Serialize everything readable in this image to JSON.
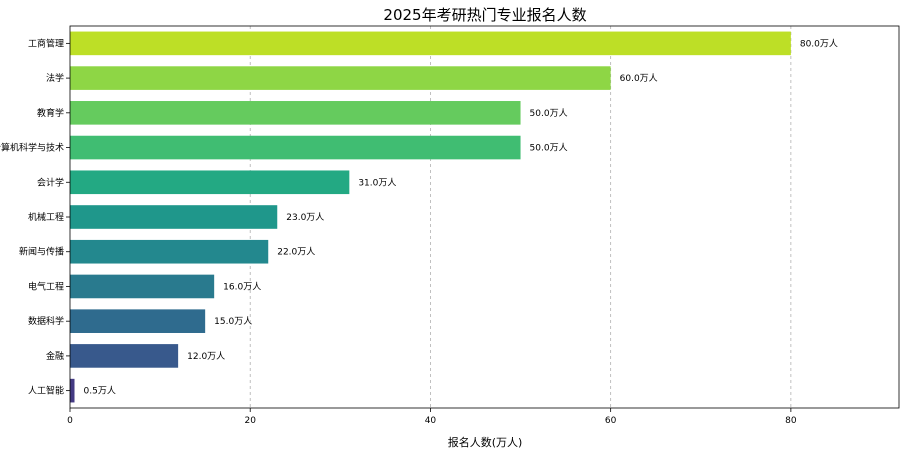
{
  "chart_data": {
    "type": "bar",
    "orientation": "horizontal",
    "title": "2025年考研热门专业报名人数",
    "xlabel": "报名人数(万人)",
    "ylabel": "",
    "xlim": [
      0,
      92
    ],
    "xticks": [
      0,
      20,
      40,
      60,
      80
    ],
    "grid": "x-dashed",
    "value_unit": "万人",
    "categories": [
      "工商管理",
      "法学",
      "教育学",
      "计算机科学与技术",
      "会计学",
      "机械工程",
      "新闻与传播",
      "电气工程",
      "数据科学",
      "金融",
      "人工智能"
    ],
    "values": [
      80.0,
      60.0,
      50.0,
      50.0,
      31.0,
      23.0,
      22.0,
      16.0,
      15.0,
      12.0,
      0.5
    ],
    "data_labels": [
      "80.0万人",
      "60.0万人",
      "50.0万人",
      "50.0万人",
      "31.0万人",
      "23.0万人",
      "22.0万人",
      "16.0万人",
      "15.0万人",
      "12.0万人",
      "0.5万人"
    ],
    "colors": [
      "#bddf26",
      "#8ed645",
      "#65cb5e",
      "#40bd72",
      "#23a983",
      "#1f978b",
      "#23888e",
      "#297a8e",
      "#2f6b8e",
      "#38598c",
      "#443a83"
    ]
  }
}
